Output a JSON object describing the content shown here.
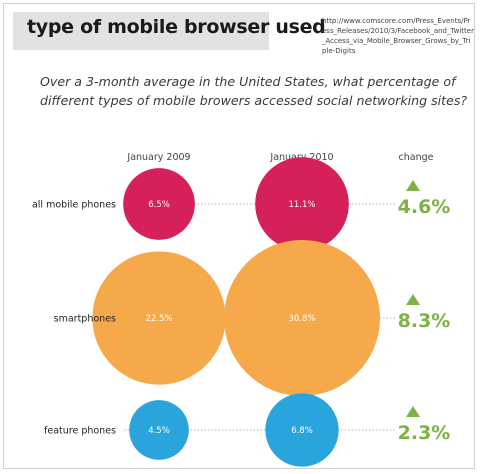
{
  "header": {
    "title": "type of mobile browser used",
    "source": "http://www.comscore.com/Press_Events/Press_Releases/2010/3/Facebook_and_Twitter_Access_via_Mobile_Browser_Grows_by_Triple-Digits"
  },
  "subtitle": "Over a 3-month average in the United States, what percentage of different types of mobile browers accessed social networking sites?",
  "colors": {
    "all_mobile": "#d6205a",
    "smartphones": "#f5a94a",
    "feature_phones": "#2aa4dc",
    "change": "#7cb342",
    "title_bar": "#e2e2e2",
    "dotted_line": "#9a9a9a"
  },
  "chart_data": {
    "type": "bubble",
    "columns": [
      "January 2009",
      "January 2010",
      "change"
    ],
    "rows": [
      {
        "category": "all mobile phones",
        "jan_2009": 6.5,
        "jan_2010": 11.1,
        "change": 4.6,
        "jan_2009_label": "6.5%",
        "jan_2010_label": "11.1%",
        "change_label": "4.6%",
        "direction": "up",
        "color": "#d6205a"
      },
      {
        "category": "smartphones",
        "jan_2009": 22.5,
        "jan_2010": 30.8,
        "change": 8.3,
        "jan_2009_label": "22.5%",
        "jan_2010_label": "30.8%",
        "change_label": "8.3%",
        "direction": "up",
        "color": "#f5a94a"
      },
      {
        "category": "feature phones",
        "jan_2009": 4.5,
        "jan_2010": 6.8,
        "change": 2.3,
        "jan_2009_label": "4.5%",
        "jan_2010_label": "6.8%",
        "change_label": "2.3%",
        "direction": "up",
        "color": "#2aa4dc"
      }
    ]
  }
}
